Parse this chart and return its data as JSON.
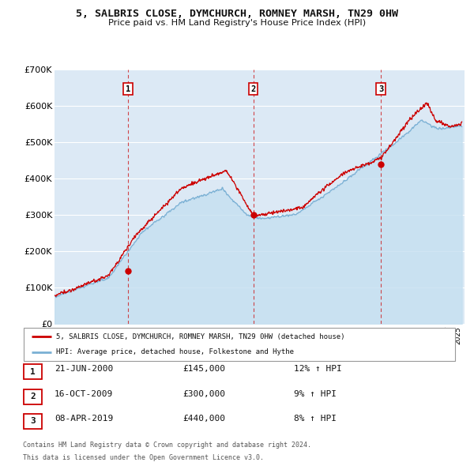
{
  "title": "5, SALBRIS CLOSE, DYMCHURCH, ROMNEY MARSH, TN29 0HW",
  "subtitle": "Price paid vs. HM Land Registry's House Price Index (HPI)",
  "ylim": [
    0,
    700000
  ],
  "yticks": [
    0,
    100000,
    200000,
    300000,
    400000,
    500000,
    600000,
    700000
  ],
  "ytick_labels": [
    "£0",
    "£100K",
    "£200K",
    "£300K",
    "£400K",
    "£500K",
    "£600K",
    "£700K"
  ],
  "background_color": "#ffffff",
  "plot_bg_color": "#dce9f5",
  "grid_color": "#ffffff",
  "sale_color": "#cc0000",
  "hpi_line_color": "#7ab0d4",
  "hpi_fill_color": "#c5dff0",
  "vline_color": "#cc0000",
  "sale_year_nums": [
    2000.472,
    2009.789,
    2019.268
  ],
  "sale_prices": [
    145000,
    300000,
    440000
  ],
  "sale_labels": [
    "1",
    "2",
    "3"
  ],
  "sale_date_strs": [
    "21-JUN-2000",
    "16-OCT-2009",
    "08-APR-2019"
  ],
  "price_strs": [
    "£145,000",
    "£300,000",
    "£440,000"
  ],
  "pct_strs": [
    "12% ↑ HPI",
    "9% ↑ HPI",
    "8% ↑ HPI"
  ],
  "legend_sale_label": "5, SALBRIS CLOSE, DYMCHURCH, ROMNEY MARSH, TN29 0HW (detached house)",
  "legend_hpi_label": "HPI: Average price, detached house, Folkestone and Hythe",
  "footer1": "Contains HM Land Registry data © Crown copyright and database right 2024.",
  "footer2": "This data is licensed under the Open Government Licence v3.0.",
  "xlim_start": 1995.0,
  "xlim_end": 2025.5
}
